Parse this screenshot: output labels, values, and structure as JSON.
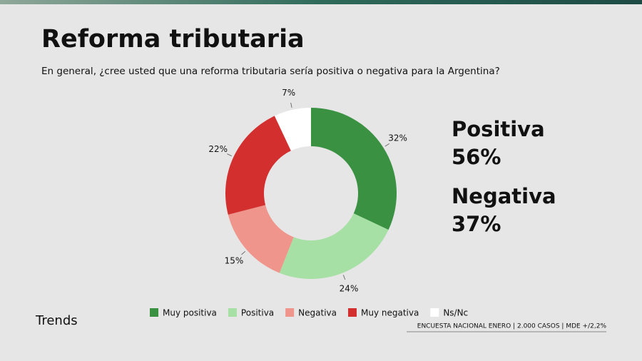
{
  "chart_data": {
    "type": "donut",
    "title": "Reforma tributaria",
    "subtitle": "En general, ¿cree usted que una reforma tributaria sería positiva o negativa para la Argentina?",
    "categories": [
      "Muy positiva",
      "Positiva",
      "Negativa",
      "Muy negativa",
      "Ns/Nc"
    ],
    "values": [
      32,
      24,
      15,
      22,
      7
    ],
    "value_labels": [
      "32%",
      "24%",
      "15%",
      "22%",
      "7%"
    ],
    "colors": [
      "#3a9142",
      "#a6e0a4",
      "#f0958b",
      "#d42f2f",
      "#ffffff"
    ],
    "summary": {
      "labels": [
        "Positiva",
        "Negativa"
      ],
      "values": [
        56,
        37
      ],
      "value_labels": [
        "56%",
        "37%"
      ],
      "colors": [
        "#3a9142",
        "#d42f2f"
      ]
    },
    "brand": "Trends",
    "source": "ENCUESTA NACIONAL ENERO | 2.000 CASOS | MDE +/2,2%"
  }
}
